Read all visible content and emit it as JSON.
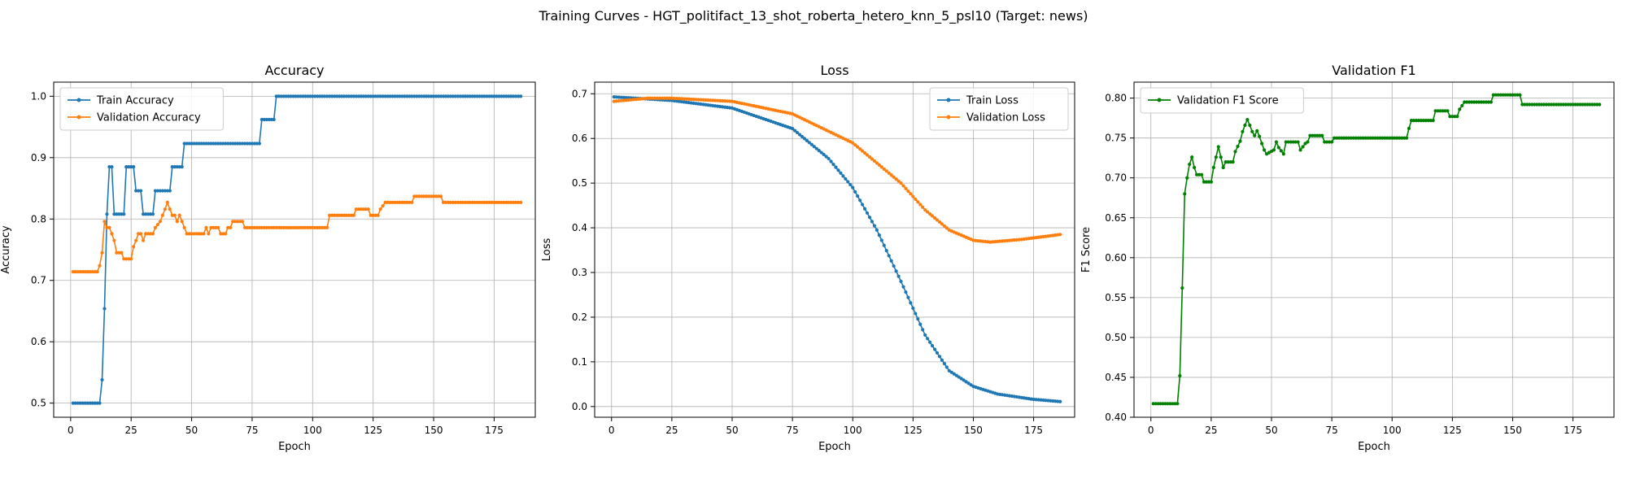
{
  "figure": {
    "suptitle": "Training Curves - HGT_politifact_13_shot_roberta_hetero_knn_5_psl10 (Target: news)"
  },
  "colors": {
    "blue": "#1f77b4",
    "orange": "#ff7f0e",
    "green": "#008000",
    "grid": "#b0b0b0"
  },
  "chart_data": [
    {
      "type": "line",
      "title": "Accuracy",
      "xlabel": "Epoch",
      "ylabel": "Accuracy",
      "xlim": [
        -7,
        192
      ],
      "ylim": [
        0.477,
        1.023
      ],
      "xticks": [
        0,
        25,
        50,
        75,
        100,
        125,
        150,
        175
      ],
      "yticks": [
        0.5,
        0.6,
        0.7,
        0.8,
        0.9,
        1.0
      ],
      "ytick_labels": [
        "0.5",
        "0.6",
        "0.7",
        "0.8",
        "0.9",
        "1.0"
      ],
      "grid": true,
      "legend_loc": "upper left",
      "series": [
        {
          "name": "Train Accuracy",
          "color": "#1f77b4",
          "knots": [
            [
              1,
              0.5
            ],
            [
              12,
              0.5
            ],
            [
              13,
              0.538
            ],
            [
              14,
              0.654
            ],
            [
              15,
              0.808
            ],
            [
              16,
              0.885
            ],
            [
              17,
              0.885
            ],
            [
              18,
              0.808
            ],
            [
              22,
              0.808
            ],
            [
              23,
              0.885
            ],
            [
              26,
              0.885
            ],
            [
              27,
              0.846
            ],
            [
              29,
              0.846
            ],
            [
              30,
              0.808
            ],
            [
              34,
              0.808
            ],
            [
              35,
              0.846
            ],
            [
              41,
              0.846
            ],
            [
              42,
              0.885
            ],
            [
              46,
              0.885
            ],
            [
              47,
              0.923
            ],
            [
              78,
              0.923
            ],
            [
              79,
              0.962
            ],
            [
              84,
              0.962
            ],
            [
              85,
              1.0
            ],
            [
              186,
              1.0
            ]
          ]
        },
        {
          "name": "Validation Accuracy",
          "color": "#ff7f0e",
          "knots": [
            [
              1,
              0.714
            ],
            [
              11,
              0.714
            ],
            [
              12,
              0.724
            ],
            [
              13,
              0.745
            ],
            [
              14,
              0.796
            ],
            [
              15,
              0.786
            ],
            [
              16,
              0.786
            ],
            [
              17,
              0.776
            ],
            [
              18,
              0.765
            ],
            [
              19,
              0.745
            ],
            [
              21,
              0.745
            ],
            [
              22,
              0.735
            ],
            [
              25,
              0.735
            ],
            [
              26,
              0.755
            ],
            [
              27,
              0.765
            ],
            [
              28,
              0.776
            ],
            [
              29,
              0.776
            ],
            [
              30,
              0.765
            ],
            [
              31,
              0.776
            ],
            [
              34,
              0.776
            ],
            [
              35,
              0.786
            ],
            [
              37,
              0.796
            ],
            [
              38,
              0.806
            ],
            [
              39,
              0.816
            ],
            [
              40,
              0.827
            ],
            [
              41,
              0.816
            ],
            [
              42,
              0.806
            ],
            [
              43,
              0.806
            ],
            [
              44,
              0.796
            ],
            [
              45,
              0.806
            ],
            [
              46,
              0.796
            ],
            [
              47,
              0.786
            ],
            [
              48,
              0.776
            ],
            [
              55,
              0.776
            ],
            [
              56,
              0.786
            ],
            [
              57,
              0.776
            ],
            [
              58,
              0.786
            ],
            [
              61,
              0.786
            ],
            [
              62,
              0.776
            ],
            [
              64,
              0.776
            ],
            [
              65,
              0.786
            ],
            [
              66,
              0.786
            ],
            [
              67,
              0.796
            ],
            [
              71,
              0.796
            ],
            [
              72,
              0.786
            ],
            [
              106,
              0.786
            ],
            [
              107,
              0.806
            ],
            [
              117,
              0.806
            ],
            [
              118,
              0.816
            ],
            [
              123,
              0.816
            ],
            [
              124,
              0.806
            ],
            [
              127,
              0.806
            ],
            [
              128,
              0.816
            ],
            [
              130,
              0.827
            ],
            [
              141,
              0.827
            ],
            [
              142,
              0.837
            ],
            [
              153,
              0.837
            ],
            [
              154,
              0.827
            ],
            [
              186,
              0.827
            ]
          ]
        }
      ]
    },
    {
      "type": "line",
      "title": "Loss",
      "xlabel": "Epoch",
      "ylabel": "Loss",
      "xlim": [
        -7,
        192
      ],
      "ylim": [
        -0.024,
        0.726
      ],
      "xticks": [
        0,
        25,
        50,
        75,
        100,
        125,
        150,
        175
      ],
      "yticks": [
        0.0,
        0.1,
        0.2,
        0.3,
        0.4,
        0.5,
        0.6,
        0.7
      ],
      "ytick_labels": [
        "0.0",
        "0.1",
        "0.2",
        "0.3",
        "0.4",
        "0.5",
        "0.6",
        "0.7"
      ],
      "grid": true,
      "legend_loc": "upper right",
      "series": [
        {
          "name": "Train Loss",
          "color": "#1f77b4",
          "knots": [
            [
              1,
              0.693
            ],
            [
              25,
              0.685
            ],
            [
              50,
              0.668
            ],
            [
              75,
              0.622
            ],
            [
              90,
              0.555
            ],
            [
              100,
              0.49
            ],
            [
              110,
              0.395
            ],
            [
              120,
              0.28
            ],
            [
              130,
              0.16
            ],
            [
              140,
              0.08
            ],
            [
              150,
              0.045
            ],
            [
              160,
              0.028
            ],
            [
              175,
              0.016
            ],
            [
              186,
              0.011
            ]
          ]
        },
        {
          "name": "Validation Loss",
          "color": "#ff7f0e",
          "knots": [
            [
              1,
              0.683
            ],
            [
              15,
              0.69
            ],
            [
              25,
              0.69
            ],
            [
              50,
              0.683
            ],
            [
              75,
              0.655
            ],
            [
              100,
              0.59
            ],
            [
              120,
              0.5
            ],
            [
              130,
              0.44
            ],
            [
              140,
              0.395
            ],
            [
              150,
              0.372
            ],
            [
              157,
              0.368
            ],
            [
              170,
              0.374
            ],
            [
              186,
              0.385
            ]
          ]
        }
      ]
    },
    {
      "type": "line",
      "title": "Validation F1",
      "xlabel": "Epoch",
      "ylabel": "F1 Score",
      "xlim": [
        -7,
        192
      ],
      "ylim": [
        0.4,
        0.82
      ],
      "xticks": [
        0,
        25,
        50,
        75,
        100,
        125,
        150,
        175
      ],
      "yticks": [
        0.4,
        0.45,
        0.5,
        0.55,
        0.6,
        0.65,
        0.7,
        0.75,
        0.8
      ],
      "ytick_labels": [
        "0.40",
        "0.45",
        "0.50",
        "0.55",
        "0.60",
        "0.65",
        "0.70",
        "0.75",
        "0.80"
      ],
      "grid": true,
      "legend_loc": "upper left",
      "series": [
        {
          "name": "Validation F1 Score",
          "color": "#008000",
          "knots": [
            [
              1,
              0.417
            ],
            [
              11,
              0.417
            ],
            [
              12,
              0.452
            ],
            [
              13,
              0.562
            ],
            [
              14,
              0.68
            ],
            [
              15,
              0.7
            ],
            [
              16,
              0.717
            ],
            [
              17,
              0.726
            ],
            [
              18,
              0.713
            ],
            [
              19,
              0.704
            ],
            [
              21,
              0.704
            ],
            [
              22,
              0.695
            ],
            [
              25,
              0.695
            ],
            [
              26,
              0.713
            ],
            [
              27,
              0.726
            ],
            [
              28,
              0.739
            ],
            [
              29,
              0.726
            ],
            [
              30,
              0.713
            ],
            [
              31,
              0.72
            ],
            [
              34,
              0.72
            ],
            [
              35,
              0.733
            ],
            [
              37,
              0.746
            ],
            [
              38,
              0.758
            ],
            [
              39,
              0.766
            ],
            [
              40,
              0.773
            ],
            [
              41,
              0.766
            ],
            [
              42,
              0.758
            ],
            [
              43,
              0.753
            ],
            [
              44,
              0.759
            ],
            [
              45,
              0.752
            ],
            [
              46,
              0.743
            ],
            [
              47,
              0.735
            ],
            [
              48,
              0.73
            ],
            [
              51,
              0.735
            ],
            [
              52,
              0.745
            ],
            [
              53,
              0.738
            ],
            [
              55,
              0.73
            ],
            [
              56,
              0.745
            ],
            [
              61,
              0.745
            ],
            [
              62,
              0.735
            ],
            [
              64,
              0.743
            ],
            [
              65,
              0.745
            ],
            [
              66,
              0.753
            ],
            [
              71,
              0.753
            ],
            [
              72,
              0.745
            ],
            [
              75,
              0.745
            ],
            [
              76,
              0.75
            ],
            [
              106,
              0.75
            ],
            [
              107,
              0.762
            ],
            [
              108,
              0.772
            ],
            [
              117,
              0.772
            ],
            [
              118,
              0.784
            ],
            [
              123,
              0.784
            ],
            [
              124,
              0.777
            ],
            [
              127,
              0.777
            ],
            [
              128,
              0.786
            ],
            [
              130,
              0.795
            ],
            [
              141,
              0.795
            ],
            [
              142,
              0.804
            ],
            [
              153,
              0.804
            ],
            [
              154,
              0.792
            ],
            [
              186,
              0.792
            ]
          ]
        }
      ]
    }
  ]
}
